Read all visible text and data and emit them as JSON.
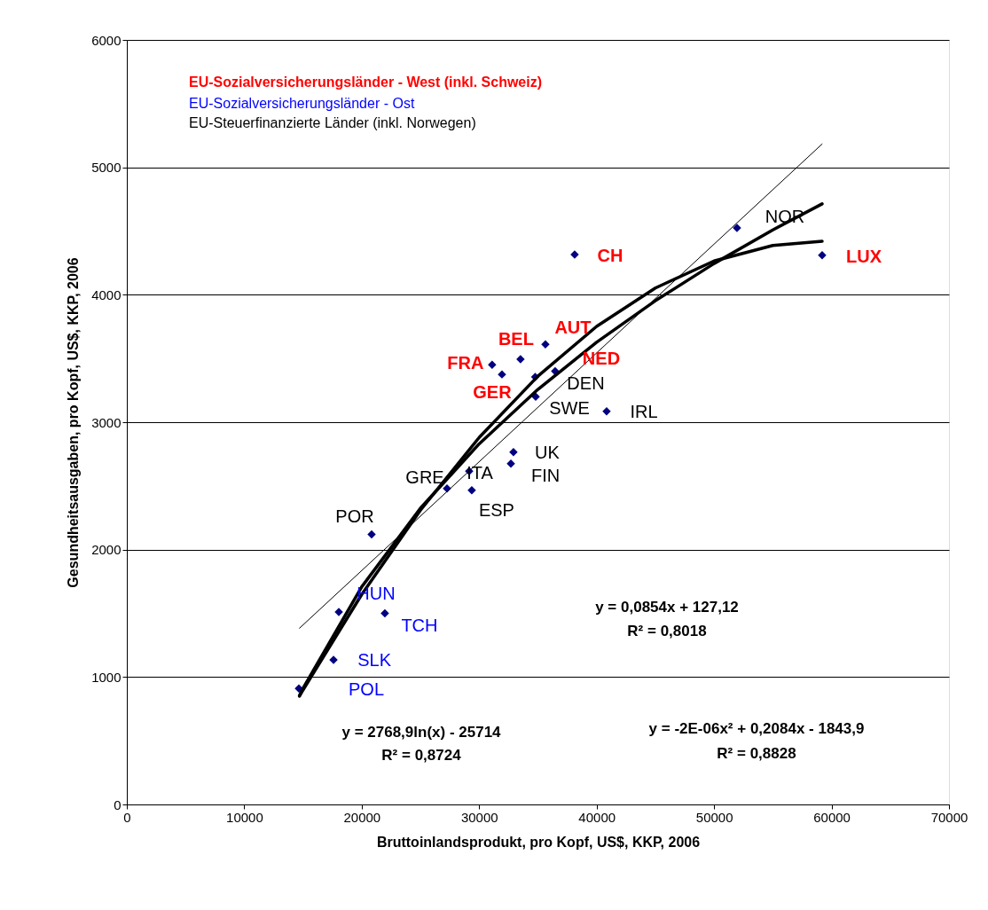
{
  "chart_data": {
    "type": "scatter",
    "xlabel": "Bruttoinlandsprodukt, pro Kopf, US$, KKP, 2006",
    "ylabel": "Gesundheitsausgaben, pro Kopf, US$, KKP, 2006",
    "xlim": [
      0,
      70000
    ],
    "xticks": [
      0,
      10000,
      20000,
      30000,
      40000,
      50000,
      60000,
      70000
    ],
    "ylim": [
      0,
      6000
    ],
    "yticks": [
      0,
      1000,
      2000,
      3000,
      4000,
      5000,
      6000
    ],
    "grid": "y",
    "series": [
      {
        "marker": "diamond",
        "color": "#000080",
        "x": [
          38130,
          59200,
          35640,
          33520,
          36470,
          31100,
          31940
        ],
        "values": [
          4315,
          4310,
          3610,
          3495,
          3400,
          3450,
          3375
        ]
      },
      {
        "marker": "diamond",
        "color": "#000080",
        "x": [
          14650,
          17600,
          18050,
          21970
        ],
        "values": [
          910,
          1135,
          1510,
          1500
        ]
      },
      {
        "marker": "diamond",
        "color": "#000080",
        "x": [
          20840,
          27260,
          29370,
          29150,
          32920,
          32700,
          34810,
          34770,
          40850,
          51950
        ],
        "values": [
          2120,
          2480,
          2465,
          2615,
          2765,
          2675,
          3200,
          3355,
          3085,
          4525
        ]
      },
      {
        "type": "line",
        "color": "#000000",
        "x": [
          14700,
          59200
        ],
        "values": [
          1383,
          5183
        ]
      },
      {
        "type": "line",
        "color": "#000000",
        "x": [
          14700,
          15000,
          20000,
          25000,
          30000,
          35000,
          40000,
          45000,
          50000,
          55000,
          59200
        ],
        "values": [
          855,
          911,
          1708,
          2325,
          2830,
          3257,
          3627,
          3953,
          4245,
          4509,
          4713
        ]
      },
      {
        "type": "line",
        "color": "#000000",
        "x": [
          14700,
          15000,
          20000,
          25000,
          30000,
          35000,
          40000,
          45000,
          50000,
          55000,
          59200
        ],
        "values": [
          850,
          898,
          1648,
          2309,
          2880,
          3361,
          3752,
          4053,
          4265,
          4387,
          4420
        ]
      }
    ],
    "annotations": [
      "EU-Sozialversicherungsländer - West (inkl. Schweiz)",
      "EU-Sozialversicherungsländer - Ost",
      "EU-Steuerfinanzierte Länder (inkl. Norwegen)",
      "y = 0,0854x + 127,12",
      "R² = 0,8018",
      "y = 2768,9ln(x) - 25714",
      "R² = 0,8724",
      "y = -2E-06x² + 0,2084x - 1843,9",
      "R² = 0,8828",
      {
        "text": "POL",
        "x": 14650,
        "y": 910
      },
      {
        "text": "SLK",
        "x": 17600,
        "y": 1135
      },
      {
        "text": "HUN",
        "x": 18050,
        "y": 1510
      },
      {
        "text": "TCH",
        "x": 21970,
        "y": 1500
      },
      {
        "text": "POR",
        "x": 20840,
        "y": 2120
      },
      {
        "text": "GRE",
        "x": 27260,
        "y": 2480
      },
      {
        "text": "ESP",
        "x": 29370,
        "y": 2465
      },
      {
        "text": "ITA",
        "x": 29150,
        "y": 2615
      },
      {
        "text": "UK",
        "x": 32920,
        "y": 2765
      },
      {
        "text": "FIN",
        "x": 32700,
        "y": 2675
      },
      {
        "text": "SWE",
        "x": 34810,
        "y": 3200
      },
      {
        "text": "DEN",
        "x": 34770,
        "y": 3355
      },
      {
        "text": "NED",
        "x": 36470,
        "y": 3400
      },
      {
        "text": "FRA",
        "x": 31100,
        "y": 3450
      },
      {
        "text": "GER",
        "x": 31940,
        "y": 3375
      },
      {
        "text": "BEL",
        "x": 33520,
        "y": 3495
      },
      {
        "text": "AUT",
        "x": 35640,
        "y": 3610
      },
      {
        "text": "IRL",
        "x": 40850,
        "y": 3085
      },
      {
        "text": "CH",
        "x": 38130,
        "y": 4315
      },
      {
        "text": "NOR",
        "x": 51950,
        "y": 4525
      },
      {
        "text": "LUX",
        "x": 59200,
        "y": 4310
      }
    ]
  }
}
